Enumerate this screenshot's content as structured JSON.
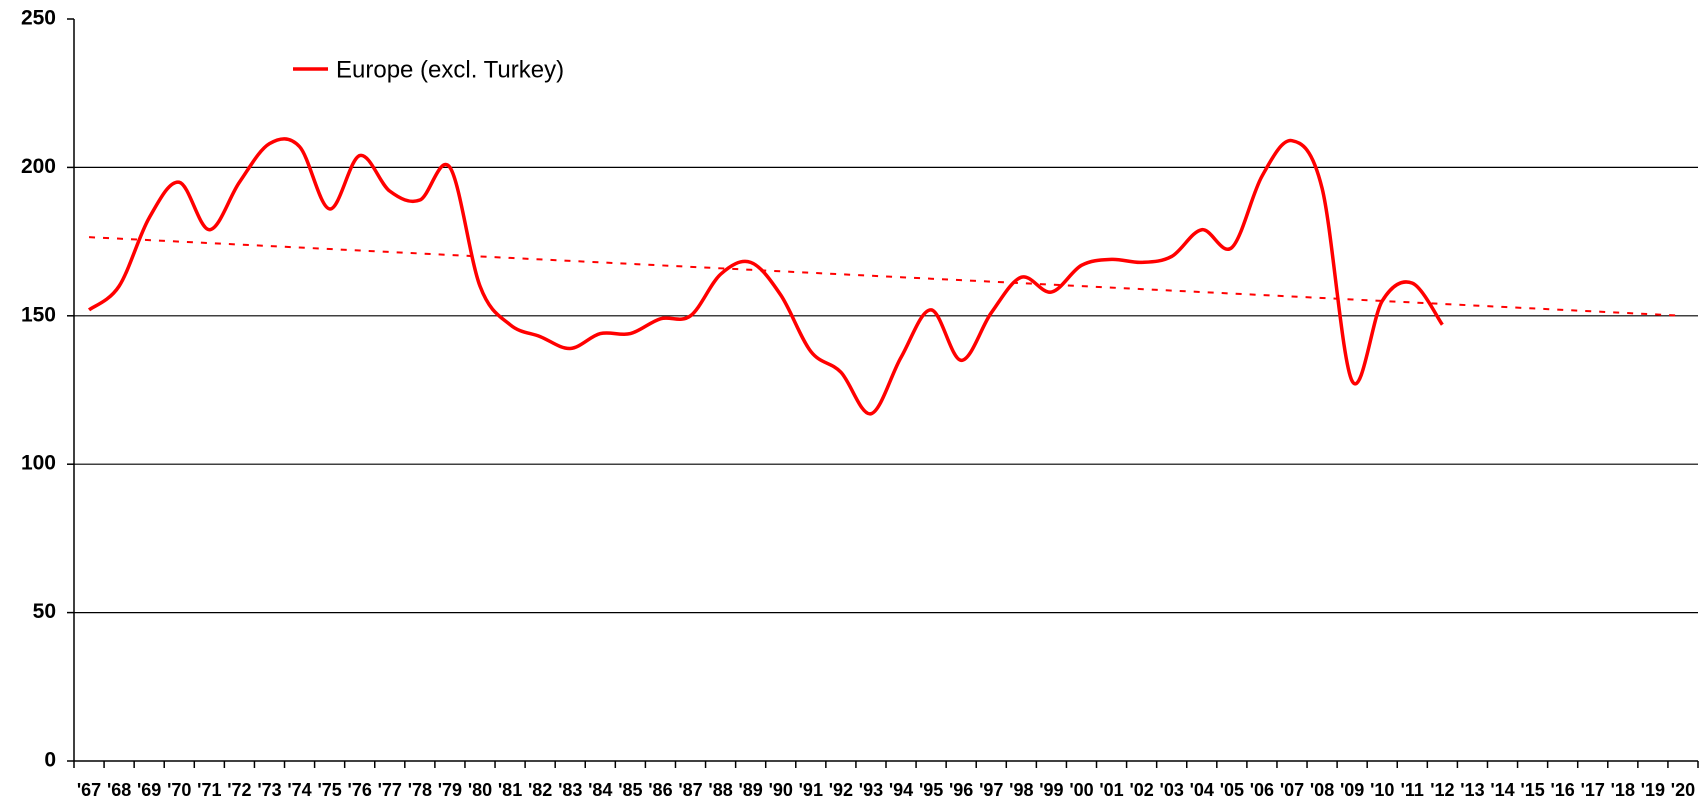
{
  "chart_data": {
    "type": "line",
    "categories": [
      "'67",
      "'68",
      "'69",
      "'70",
      "'71",
      "'72",
      "'73",
      "'74",
      "'75",
      "'76",
      "'77",
      "'78",
      "'79",
      "'80",
      "'81",
      "'82",
      "'83",
      "'84",
      "'85",
      "'86",
      "'87",
      "'88",
      "'89",
      "'90",
      "'91",
      "'92",
      "'93",
      "'94",
      "'95",
      "'96",
      "'97",
      "'98",
      "'99",
      "'00",
      "'01",
      "'02",
      "'03",
      "'04",
      "'05",
      "'06",
      "'07",
      "'08",
      "'09",
      "'10",
      "'11",
      "'12",
      "'13",
      "'14",
      "'15",
      "'16",
      "'17",
      "'18",
      "'19",
      "'20"
    ],
    "series": [
      {
        "name": "Europe (excl. Turkey)",
        "color": "#ff0000",
        "values": [
          152,
          160,
          183,
          195,
          179,
          195,
          208,
          207,
          186,
          204,
          192,
          189,
          200,
          160,
          147,
          143,
          139,
          144,
          144,
          149,
          150,
          164,
          168,
          157,
          138,
          131,
          117,
          136,
          152,
          135,
          151,
          163,
          158,
          167,
          169,
          168,
          170,
          179,
          173,
          197,
          209,
          193,
          128,
          155,
          161,
          147,
          null,
          null,
          null,
          null,
          null,
          null,
          null,
          null
        ]
      },
      {
        "color": "#ff0000",
        "dashed": true,
        "values": [
          176.5,
          176,
          175.5,
          175,
          174.5,
          174,
          173.5,
          173,
          172.5,
          172,
          171.5,
          171,
          170.5,
          170,
          169.5,
          169,
          168.5,
          168,
          167.5,
          167,
          166.5,
          166,
          165.5,
          165,
          164.5,
          164,
          163.5,
          163,
          162.5,
          162,
          161.5,
          161,
          160.5,
          160,
          159.5,
          159,
          158.5,
          158,
          157.5,
          157,
          156.5,
          156,
          155.5,
          155,
          154.5,
          154,
          153.5,
          153,
          152.5,
          152,
          151.5,
          151,
          150.5,
          150
        ]
      }
    ],
    "ylim": [
      0,
      250
    ],
    "yticks": [
      0,
      50,
      100,
      150,
      200,
      250
    ],
    "grid": true,
    "legend": "top-left"
  }
}
